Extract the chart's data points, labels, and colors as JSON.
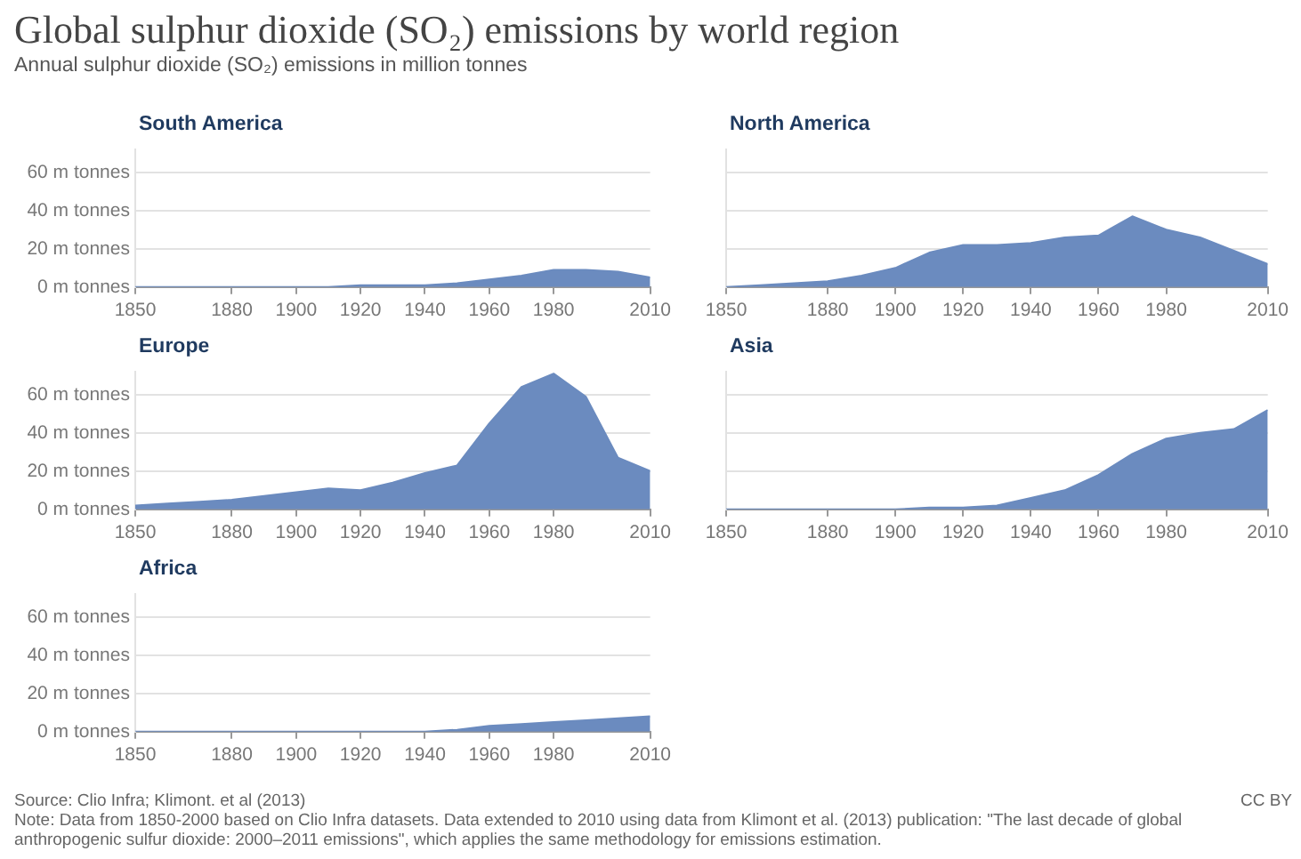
{
  "chart_data": [
    {
      "type": "other",
      "title": "Global sulphur dioxide (SO₂) emissions by world region",
      "subtitle": "Annual sulphur dioxide (SO₂) emissions in million tonnes"
    },
    {
      "type": "area",
      "title": "South America",
      "x": [
        1850,
        1860,
        1870,
        1880,
        1890,
        1900,
        1910,
        1920,
        1930,
        1940,
        1950,
        1960,
        1970,
        1980,
        1990,
        2000,
        2010
      ],
      "values": [
        0,
        0,
        0,
        0,
        0,
        0,
        0,
        1,
        1,
        1,
        2,
        4,
        6,
        9,
        9,
        8,
        5
      ],
      "color": "#6b8bbf",
      "xlim": [
        1850,
        2010
      ],
      "xticks": [
        1850,
        1880,
        1900,
        1920,
        1940,
        1960,
        1980,
        2010
      ],
      "ylim": [
        0,
        72
      ],
      "yticks": [
        {
          "value": 0,
          "label": "0 m tonnes"
        },
        {
          "value": 20,
          "label": "20 m tonnes"
        },
        {
          "value": 40,
          "label": "40 m tonnes"
        },
        {
          "value": 60,
          "label": "60 m tonnes"
        }
      ],
      "grid": "y"
    },
    {
      "type": "area",
      "title": "North America",
      "x": [
        1850,
        1860,
        1870,
        1880,
        1890,
        1900,
        1910,
        1920,
        1930,
        1940,
        1950,
        1960,
        1970,
        1980,
        1990,
        2000,
        2010
      ],
      "values": [
        0,
        1,
        2,
        3,
        6,
        10,
        18,
        22,
        22,
        23,
        26,
        27,
        37,
        30,
        26,
        19,
        12
      ],
      "color": "#6b8bbf",
      "xlim": [
        1850,
        2010
      ],
      "xticks": [
        1850,
        1880,
        1900,
        1920,
        1940,
        1960,
        1980,
        2010
      ],
      "ylim": [
        0,
        72
      ],
      "yticks": [
        0,
        20,
        40,
        60
      ],
      "grid": "y",
      "tick_labels": "x"
    },
    {
      "type": "area",
      "title": "Europe",
      "x": [
        1850,
        1860,
        1870,
        1880,
        1890,
        1900,
        1910,
        1920,
        1930,
        1940,
        1950,
        1960,
        1970,
        1980,
        1990,
        2000,
        2010
      ],
      "values": [
        2,
        3,
        4,
        5,
        7,
        9,
        11,
        10,
        14,
        19,
        23,
        45,
        64,
        71,
        59,
        27,
        20
      ],
      "color": "#6b8bbf",
      "xlim": [
        1850,
        2010
      ],
      "xticks": [
        1850,
        1880,
        1900,
        1920,
        1940,
        1960,
        1980,
        2010
      ],
      "ylim": [
        0,
        72
      ],
      "yticks": [
        {
          "value": 0,
          "label": "0 m tonnes"
        },
        {
          "value": 20,
          "label": "20 m tonnes"
        },
        {
          "value": 40,
          "label": "40 m tonnes"
        },
        {
          "value": 60,
          "label": "60 m tonnes"
        }
      ],
      "grid": "y"
    },
    {
      "type": "area",
      "title": "Asia",
      "x": [
        1850,
        1860,
        1870,
        1880,
        1890,
        1900,
        1910,
        1920,
        1930,
        1940,
        1950,
        1960,
        1970,
        1980,
        1990,
        2000,
        2010
      ],
      "values": [
        0,
        0,
        0,
        0,
        0,
        0,
        1,
        1,
        2,
        6,
        10,
        18,
        29,
        37,
        40,
        42,
        52
      ],
      "color": "#6b8bbf",
      "xlim": [
        1850,
        2010
      ],
      "xticks": [
        1850,
        1880,
        1900,
        1920,
        1940,
        1960,
        1980,
        2010
      ],
      "ylim": [
        0,
        72
      ],
      "yticks": [
        0,
        20,
        40,
        60
      ],
      "grid": "y",
      "tick_labels": "x"
    },
    {
      "type": "area",
      "title": "Africa",
      "x": [
        1850,
        1860,
        1870,
        1880,
        1890,
        1900,
        1910,
        1920,
        1930,
        1940,
        1950,
        1960,
        1970,
        1980,
        1990,
        2000,
        2010
      ],
      "values": [
        0,
        0,
        0,
        0,
        0,
        0,
        0,
        0,
        0,
        0,
        1,
        3,
        4,
        5,
        6,
        7,
        8
      ],
      "color": "#6b8bbf",
      "xlim": [
        1850,
        2010
      ],
      "xticks": [
        1850,
        1880,
        1900,
        1920,
        1940,
        1960,
        1980,
        2010
      ],
      "ylim": [
        0,
        72
      ],
      "yticks": [
        {
          "value": 0,
          "label": "0 m tonnes"
        },
        {
          "value": 20,
          "label": "20 m tonnes"
        },
        {
          "value": 40,
          "label": "40 m tonnes"
        },
        {
          "value": 60,
          "label": "60 m tonnes"
        }
      ],
      "grid": "y"
    },
    {
      "type": "other",
      "annotations": [
        "Source: Clio Infra; Klimont. et al (2013)",
        "CC BY",
        "Note: Data from 1850-2000 based on Clio Infra datasets. Data extended to 2010 using data from Klimont et al. (2013) publication: \"The last decade of global anthropogenic sulfur dioxide: 2000–2011 emissions\", which applies the same methodology for emissions estimation."
      ]
    }
  ]
}
